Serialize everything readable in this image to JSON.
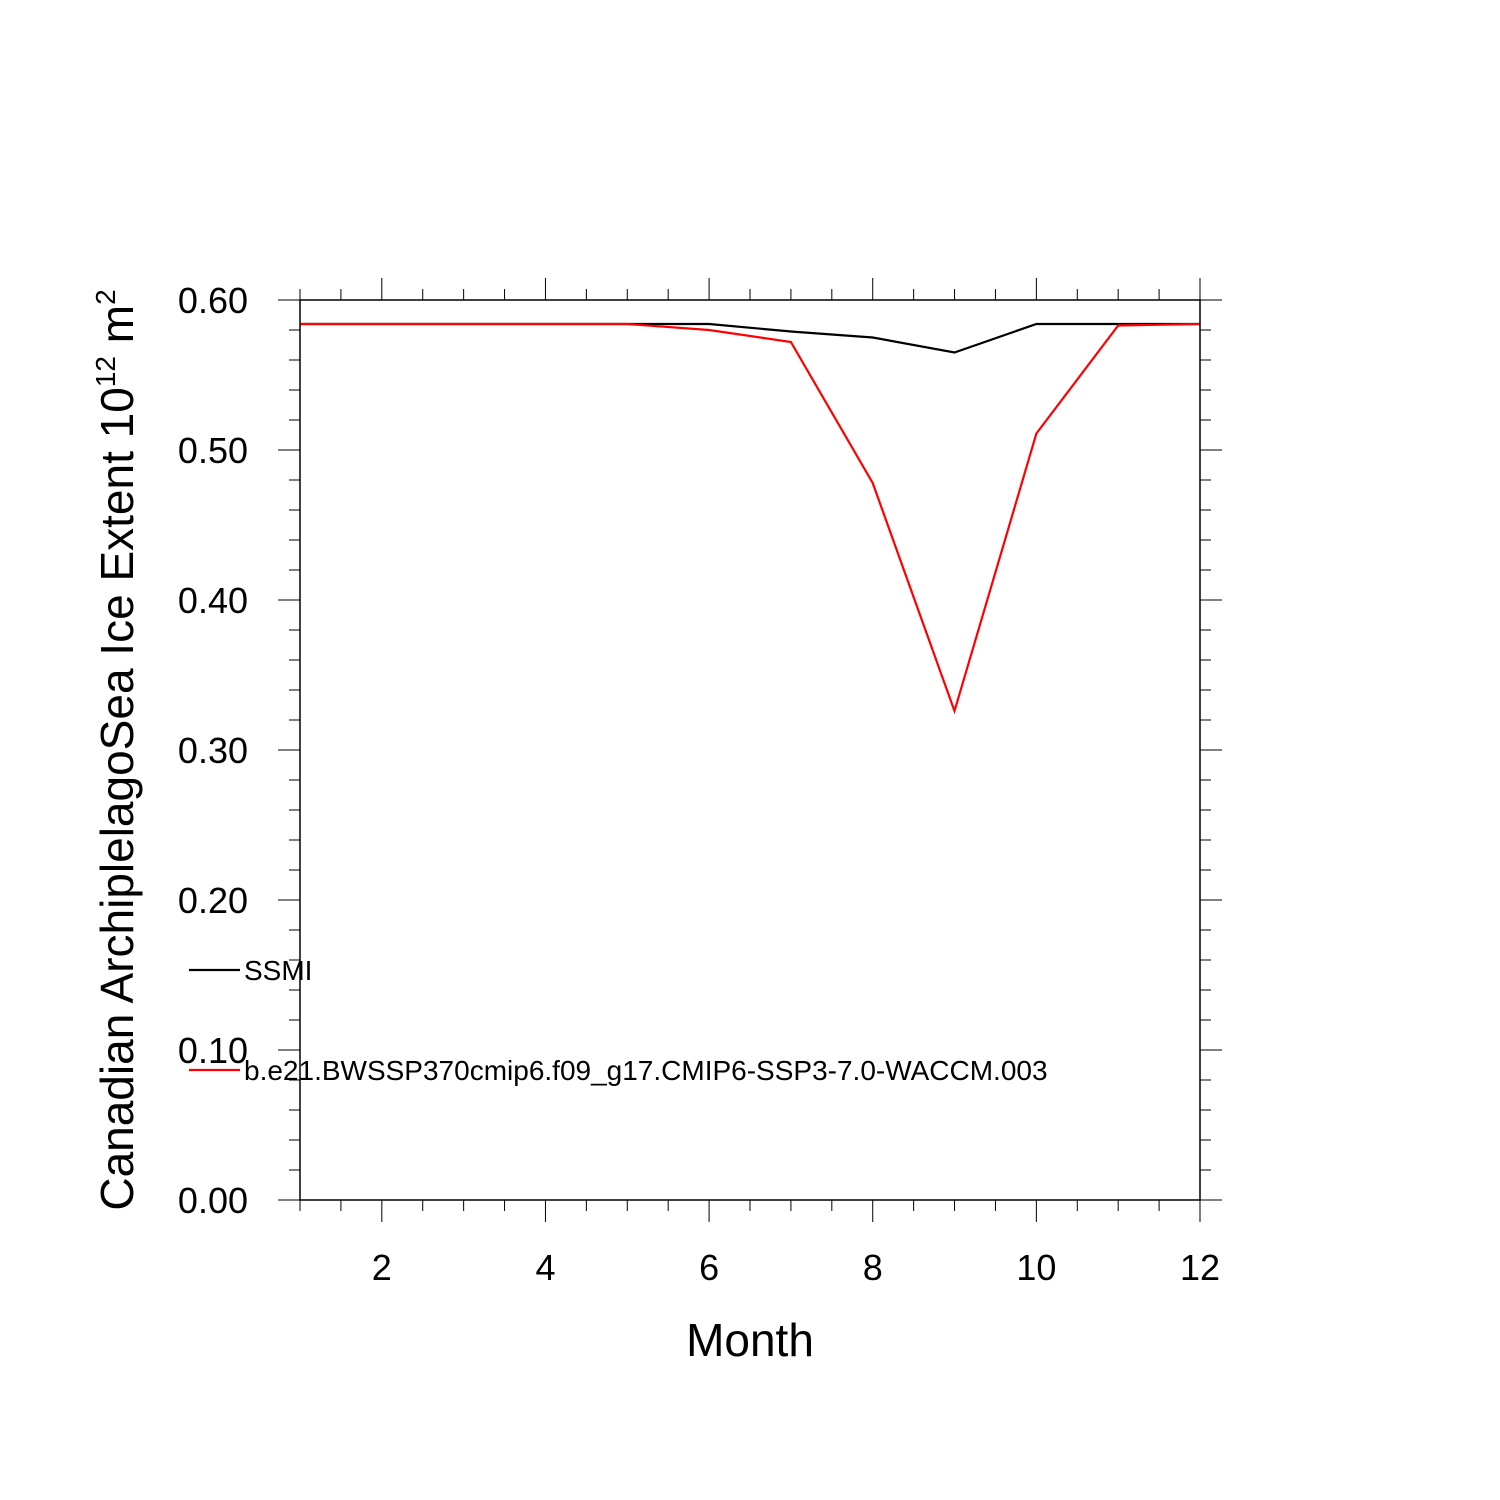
{
  "chart_data": {
    "type": "line",
    "title": "",
    "xlabel": "Month",
    "ylabel": {
      "text": "Canadian ArchiplelagoSea Ice Extent 10",
      "exponent": "12",
      "unit": " m",
      "unit_exponent": "2"
    },
    "xlim": [
      1,
      12
    ],
    "ylim": [
      0.0,
      0.6
    ],
    "x_ticks": [
      2,
      4,
      6,
      8,
      10,
      12
    ],
    "x_tick_labels": [
      "2",
      "4",
      "6",
      "8",
      "10",
      "12"
    ],
    "y_ticks": [
      0.0,
      0.1,
      0.2,
      0.3,
      0.4,
      0.5,
      0.6
    ],
    "y_tick_labels": [
      "0.00",
      "0.10",
      "0.20",
      "0.30",
      "0.40",
      "0.50",
      "0.60"
    ],
    "grid": false,
    "legend_position": "lower-left",
    "x": [
      1,
      2,
      3,
      4,
      5,
      6,
      7,
      8,
      9,
      10,
      11,
      12
    ],
    "series": [
      {
        "name": "SSMI",
        "color": "#000000",
        "values": [
          0.584,
          0.584,
          0.584,
          0.584,
          0.584,
          0.584,
          0.579,
          0.575,
          0.565,
          0.584,
          0.584,
          0.584
        ]
      },
      {
        "name": "b.e21.BWSSP370cmip6.f09_g17.CMIP6-SSP3-7.0-WACCM.003",
        "color": "#ff0000",
        "values": [
          0.584,
          0.584,
          0.584,
          0.584,
          0.584,
          0.58,
          0.572,
          0.478,
          0.326,
          0.511,
          0.583,
          0.584
        ]
      }
    ]
  }
}
